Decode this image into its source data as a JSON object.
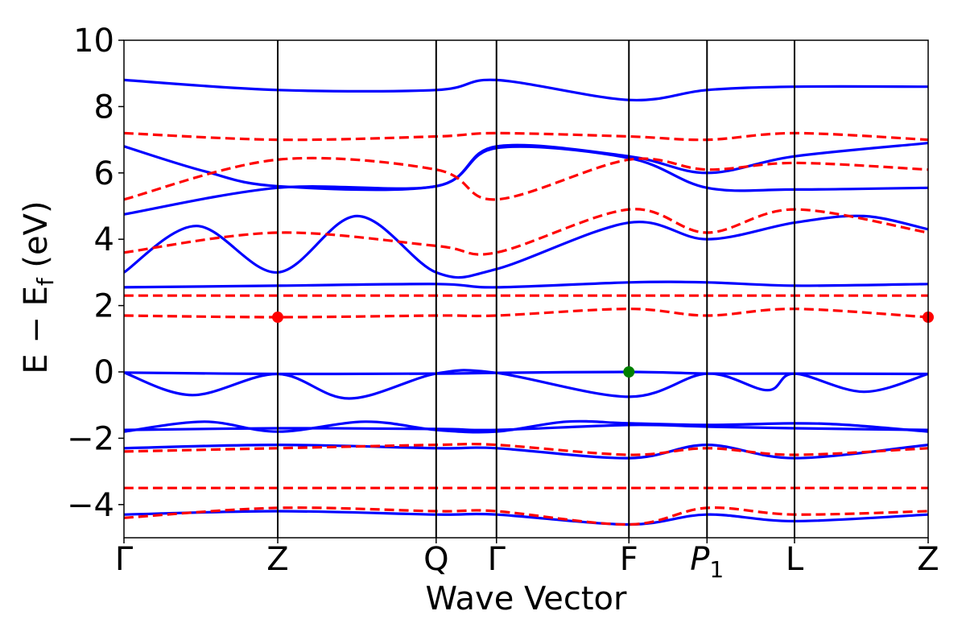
{
  "chart_data": {
    "type": "line",
    "title": "",
    "xlabel": "Wave Vector",
    "ylabel": "E − E_f (eV)",
    "ylim": [
      -5,
      10
    ],
    "xlim": [
      0,
      1
    ],
    "yticks": [
      -4,
      -2,
      0,
      2,
      4,
      6,
      8,
      10
    ],
    "ytick_labels": [
      "−4",
      "−2",
      "0",
      "2",
      "4",
      "6",
      "8",
      "10"
    ],
    "kpoints": [
      {
        "label": "Γ",
        "pos": 0.0
      },
      {
        "label": "Z",
        "pos": 0.1912
      },
      {
        "label": "Q",
        "pos": 0.3882
      },
      {
        "label": "Γ",
        "pos": 0.4632
      },
      {
        "label": "F",
        "pos": 0.6279
      },
      {
        "label": "P1",
        "pos": 0.725
      },
      {
        "label": "L",
        "pos": 0.8338
      },
      {
        "label": "Z",
        "pos": 1.0
      }
    ],
    "grid": false,
    "legend": "none",
    "colors": {
      "spin_up": "#0000ff",
      "spin_down": "#ff0000",
      "cbm_marker": "#ff0000",
      "vbm_marker": "#008000"
    },
    "series": [
      {
        "style": "solid",
        "color": "#0000ff",
        "x": [
          0,
          0.1912,
          0.3882,
          0.4632,
          0.6279,
          0.725,
          0.8338,
          1.0
        ],
        "values": [
          -0.02,
          -0.06,
          -0.05,
          -0.03,
          0.0,
          -0.05,
          -0.05,
          -0.06
        ]
      },
      {
        "style": "solid",
        "color": "#0000ff",
        "x": [
          0,
          0.085,
          0.1912,
          0.28,
          0.3882,
          0.4632,
          0.6279,
          0.725,
          0.8,
          0.8338,
          0.92,
          1.0
        ],
        "values": [
          -0.02,
          -0.7,
          -0.06,
          -0.8,
          -0.05,
          -0.03,
          -0.75,
          -0.05,
          -0.55,
          -0.05,
          -0.6,
          -0.06
        ]
      },
      {
        "style": "solid",
        "color": "#0000ff",
        "x": [
          0,
          0.1912,
          0.3882,
          0.4632,
          0.6279,
          0.725,
          0.8338,
          1.0
        ],
        "values": [
          -1.75,
          -1.7,
          -1.72,
          -1.75,
          -1.6,
          -1.65,
          -1.7,
          -1.75
        ]
      },
      {
        "style": "solid",
        "color": "#0000ff",
        "x": [
          0,
          0.1,
          0.1912,
          0.3,
          0.3882,
          0.4632,
          0.55,
          0.6279,
          0.725,
          0.8338,
          0.9,
          1.0
        ],
        "values": [
          -1.8,
          -1.5,
          -1.8,
          -1.5,
          -1.75,
          -1.8,
          -1.5,
          -1.55,
          -1.6,
          -1.55,
          -1.6,
          -1.8
        ]
      },
      {
        "style": "solid",
        "color": "#0000ff",
        "x": [
          0,
          0.1912,
          0.3882,
          0.4632,
          0.6279,
          0.725,
          0.8338,
          1.0
        ],
        "values": [
          2.55,
          2.6,
          2.65,
          2.55,
          2.7,
          2.7,
          2.6,
          2.65
        ]
      },
      {
        "style": "solid",
        "color": "#0000ff",
        "x": [
          0,
          0.09,
          0.1912,
          0.29,
          0.3882,
          0.4632,
          0.6279,
          0.725,
          0.8338,
          0.92,
          1.0
        ],
        "values": [
          3.0,
          4.4,
          3.0,
          4.7,
          3.0,
          3.1,
          4.5,
          4.0,
          4.5,
          4.7,
          4.3
        ]
      },
      {
        "style": "solid",
        "color": "#0000ff",
        "x": [
          0,
          0.1912,
          0.3882,
          0.4632,
          0.6279,
          0.725,
          0.8338,
          1.0
        ],
        "values": [
          4.75,
          5.55,
          5.6,
          6.75,
          6.45,
          5.55,
          5.5,
          5.55
        ]
      },
      {
        "style": "solid",
        "color": "#0000ff",
        "x": [
          0,
          0.1,
          0.1912,
          0.3882,
          0.4632,
          0.6279,
          0.725,
          0.8338,
          1.0
        ],
        "values": [
          6.8,
          6.05,
          5.6,
          5.6,
          6.8,
          6.5,
          6.0,
          6.5,
          6.9
        ]
      },
      {
        "style": "solid",
        "color": "#0000ff",
        "x": [
          0,
          0.1912,
          0.3882,
          0.4632,
          0.6279,
          0.725,
          0.8338,
          1.0
        ],
        "values": [
          8.8,
          8.5,
          8.5,
          8.8,
          8.2,
          8.5,
          8.6,
          8.6
        ]
      },
      {
        "style": "solid",
        "color": "#0000ff",
        "x": [
          0,
          0.1912,
          0.3882,
          0.4632,
          0.6279,
          0.725,
          0.8338,
          1.0
        ],
        "values": [
          -4.3,
          -4.2,
          -4.3,
          -4.3,
          -4.6,
          -4.3,
          -4.5,
          -4.3
        ]
      },
      {
        "style": "solid",
        "color": "#0000ff",
        "x": [
          0,
          0.1912,
          0.3882,
          0.4632,
          0.6279,
          0.725,
          0.8338,
          1.0
        ],
        "values": [
          -2.3,
          -2.2,
          -2.3,
          -2.3,
          -2.6,
          -2.2,
          -2.6,
          -2.2
        ]
      },
      {
        "style": "dashed",
        "color": "#ff0000",
        "x": [
          0,
          0.1912,
          0.3882,
          0.4632,
          0.6279,
          0.725,
          0.8338,
          1.0
        ],
        "values": [
          1.7,
          1.65,
          1.7,
          1.7,
          1.9,
          1.7,
          1.9,
          1.65
        ]
      },
      {
        "style": "dashed",
        "color": "#ff0000",
        "x": [
          0,
          0.1912,
          0.3882,
          0.4632,
          0.6279,
          0.725,
          0.8338,
          1.0
        ],
        "values": [
          2.3,
          2.3,
          2.3,
          2.3,
          2.3,
          2.3,
          2.3,
          2.3
        ]
      },
      {
        "style": "dashed",
        "color": "#ff0000",
        "x": [
          0,
          0.1912,
          0.3882,
          0.4632,
          0.6279,
          0.725,
          0.8338,
          1.0
        ],
        "values": [
          3.6,
          4.2,
          3.8,
          3.6,
          4.9,
          4.2,
          4.9,
          4.2
        ]
      },
      {
        "style": "dashed",
        "color": "#ff0000",
        "x": [
          0,
          0.1912,
          0.3882,
          0.4632,
          0.6279,
          0.725,
          0.8338,
          1.0
        ],
        "values": [
          5.2,
          6.4,
          6.1,
          5.2,
          6.4,
          6.1,
          6.3,
          6.1
        ]
      },
      {
        "style": "dashed",
        "color": "#ff0000",
        "x": [
          0,
          0.1912,
          0.3882,
          0.4632,
          0.6279,
          0.725,
          0.8338,
          1.0
        ],
        "values": [
          7.2,
          7.0,
          7.1,
          7.2,
          7.1,
          7.0,
          7.2,
          7.0
        ]
      },
      {
        "style": "dashed",
        "color": "#ff0000",
        "x": [
          0,
          0.1912,
          0.3882,
          0.4632,
          0.6279,
          0.725,
          0.8338,
          1.0
        ],
        "values": [
          -2.4,
          -2.3,
          -2.2,
          -2.2,
          -2.5,
          -2.3,
          -2.5,
          -2.3
        ]
      },
      {
        "style": "dashed",
        "color": "#ff0000",
        "x": [
          0,
          0.1912,
          0.3882,
          0.4632,
          0.6279,
          0.725,
          0.8338,
          1.0
        ],
        "values": [
          -3.5,
          -3.5,
          -3.5,
          -3.5,
          -3.5,
          -3.5,
          -3.5,
          -3.5
        ]
      },
      {
        "style": "dashed",
        "color": "#ff0000",
        "x": [
          0,
          0.1912,
          0.3882,
          0.4632,
          0.6279,
          0.725,
          0.8338,
          1.0
        ],
        "values": [
          -4.4,
          -4.1,
          -4.2,
          -4.2,
          -4.6,
          -4.1,
          -4.3,
          -4.2
        ]
      }
    ],
    "markers": [
      {
        "name": "cbm",
        "x": 0.1912,
        "y": 1.65,
        "color": "#ff0000"
      },
      {
        "name": "cbm",
        "x": 1.0,
        "y": 1.65,
        "color": "#ff0000"
      },
      {
        "name": "vbm",
        "x": 0.6279,
        "y": 0.0,
        "color": "#008000"
      }
    ]
  }
}
